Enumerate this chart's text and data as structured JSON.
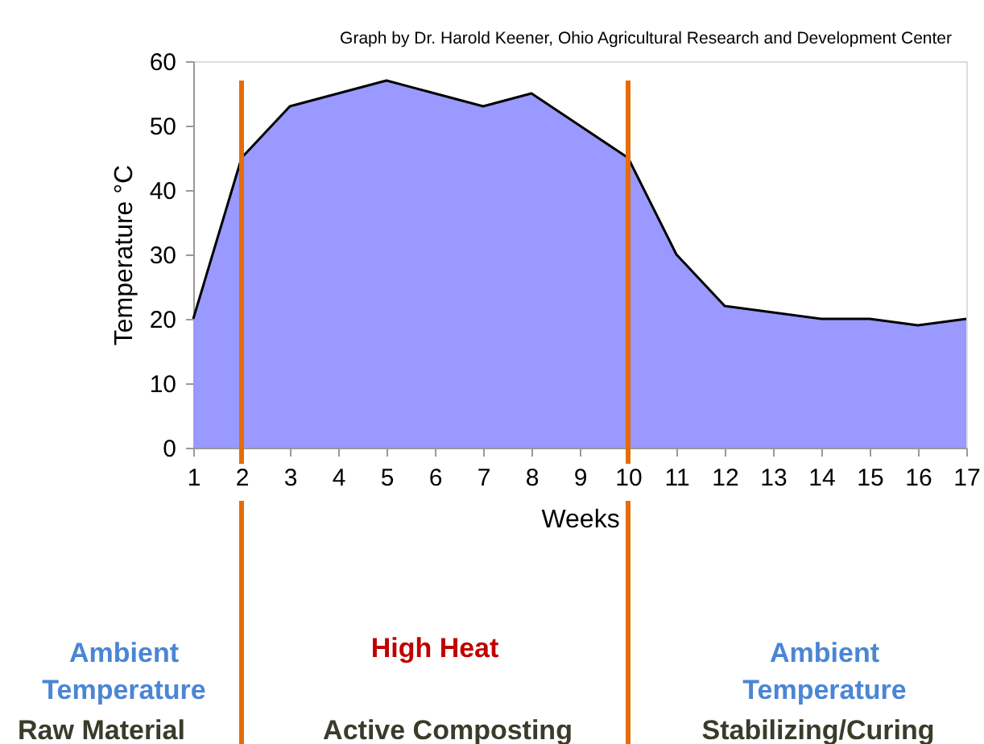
{
  "chart_data": {
    "type": "area",
    "x": [
      1,
      2,
      3,
      4,
      5,
      6,
      7,
      8,
      9,
      10,
      11,
      12,
      13,
      14,
      15,
      16,
      17
    ],
    "series": [
      {
        "color": "#9999ff",
        "values": [
          20,
          45,
          53,
          55,
          57,
          55,
          53,
          55,
          50,
          45,
          30,
          22,
          21,
          20,
          20,
          19,
          20
        ]
      }
    ],
    "xlim": [
      1,
      17
    ],
    "xticks": [
      1,
      2,
      3,
      4,
      5,
      6,
      7,
      8,
      9,
      10,
      11,
      12,
      13,
      14,
      15,
      16,
      17
    ],
    "ylim": [
      0,
      60
    ],
    "yticks": [
      0,
      10,
      20,
      30,
      40,
      50,
      60
    ],
    "xlabel": "Weeks",
    "ylabel": "Temperature °C",
    "grid": false,
    "ref_lines": [
      {
        "axis": "x",
        "value": 2,
        "color": "#e46c0a"
      },
      {
        "axis": "x",
        "value": 10,
        "color": "#e46c0a"
      }
    ],
    "annotations": [
      "Graph by Dr. Harold Keener, Ohio Agricultural Research and Development Center",
      "Ambient Temperature",
      "High Heat",
      "Ambient Temperature",
      "Raw Material",
      "Active Composting",
      "Stabilizing/Curing"
    ]
  }
}
